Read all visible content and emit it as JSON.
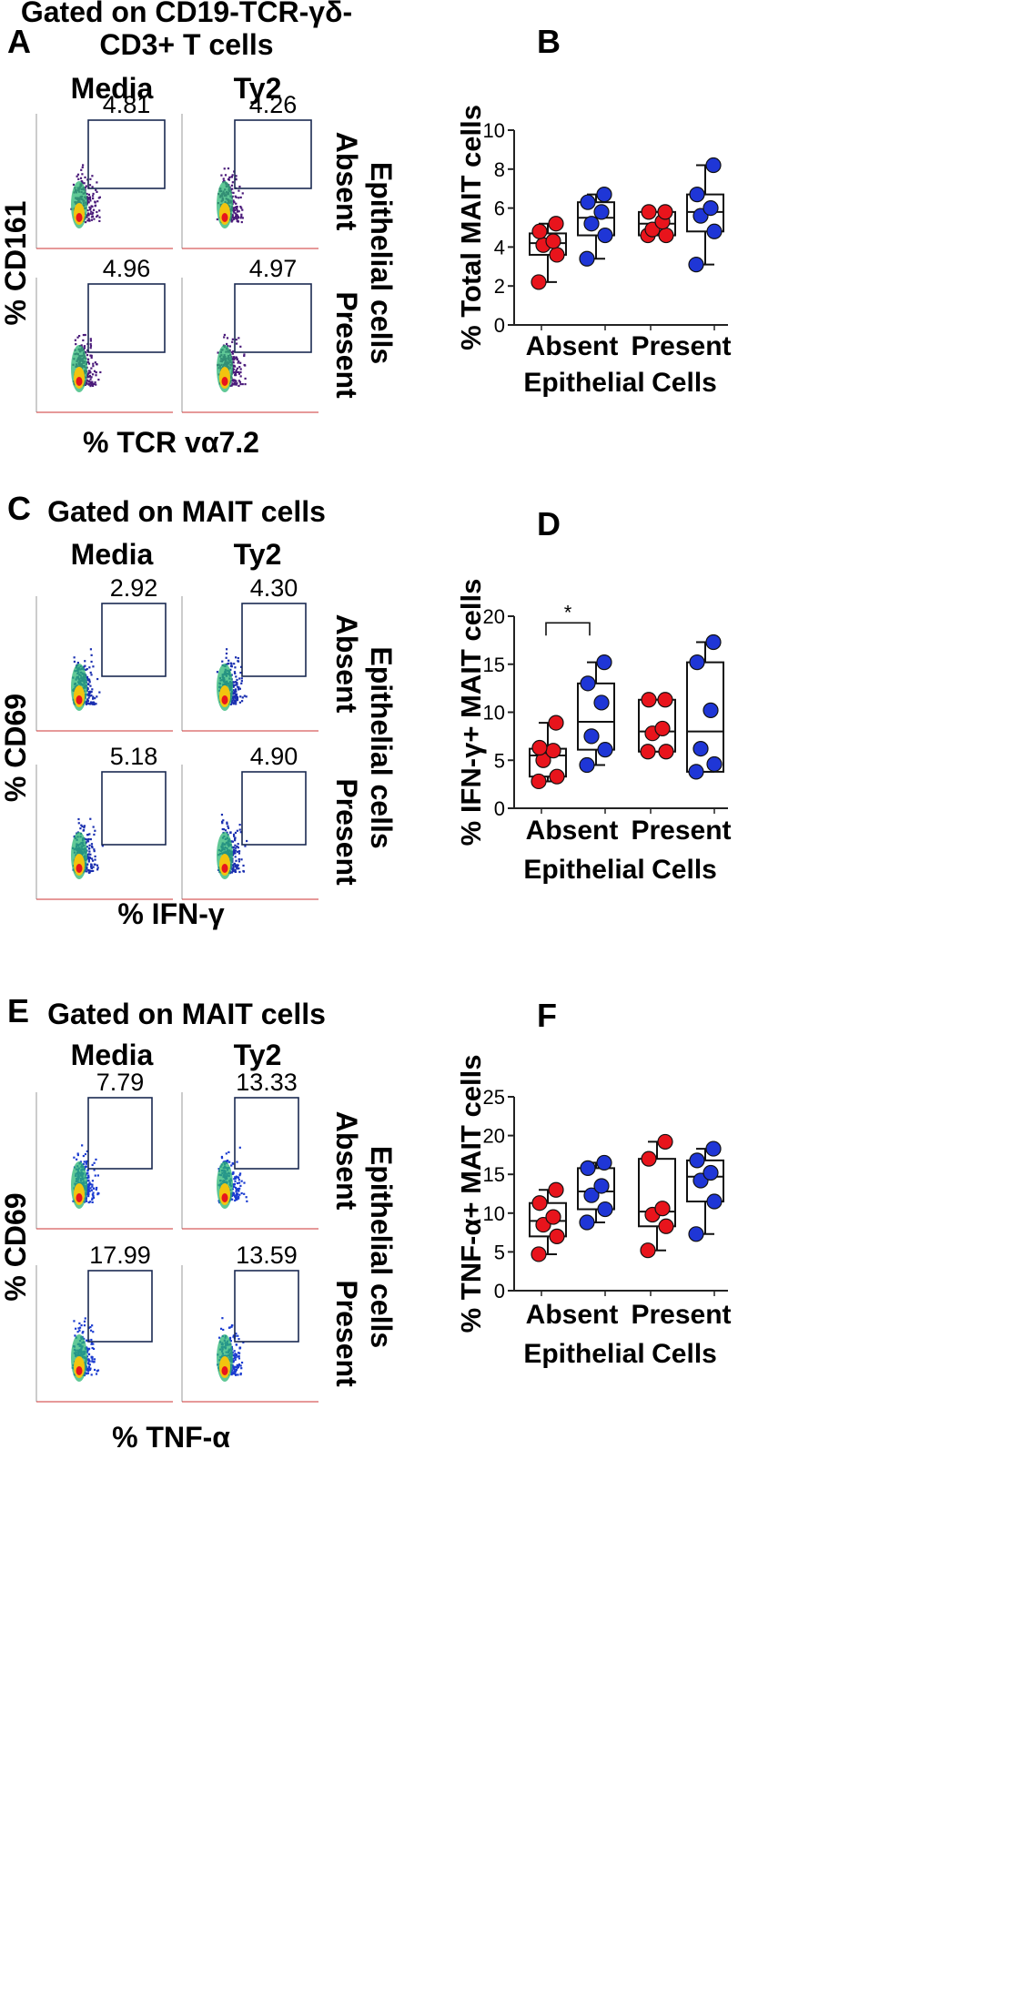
{
  "colors": {
    "absent_media": "#e8141c",
    "ty2": "#1f36d6",
    "gate": "#1a2a52"
  },
  "flow_panels": [
    {
      "panel_label": "A",
      "title_lines": [
        "Gated on CD19-TCR-γδ-",
        "CD3+ T cells"
      ],
      "col_labels": [
        "Media",
        "Ty2"
      ],
      "row_labels": [
        "Absent",
        "Present"
      ],
      "side_label": "Epithelial cells",
      "y_label": "% CD161",
      "x_label": "% TCR vα7.2",
      "dot_color": "#4a1a7a",
      "gates": [
        {
          "row": 0,
          "col": 0,
          "value": "4.81"
        },
        {
          "row": 0,
          "col": 1,
          "value": "4.26"
        },
        {
          "row": 1,
          "col": 0,
          "value": "4.96"
        },
        {
          "row": 1,
          "col": 1,
          "value": "4.97"
        }
      ]
    },
    {
      "panel_label": "C",
      "title_lines": [
        "Gated on MAIT cells"
      ],
      "col_labels": [
        "Media",
        "Ty2"
      ],
      "row_labels": [
        "Absent",
        "Present"
      ],
      "side_label": "Epithelial cells",
      "y_label": "% CD69",
      "x_label": "% IFN-γ",
      "dot_color": "#1a2fb0",
      "gates": [
        {
          "row": 0,
          "col": 0,
          "value": "2.92"
        },
        {
          "row": 0,
          "col": 1,
          "value": "4.30"
        },
        {
          "row": 1,
          "col": 0,
          "value": "5.18"
        },
        {
          "row": 1,
          "col": 1,
          "value": "4.90"
        }
      ]
    },
    {
      "panel_label": "E",
      "title_lines": [
        "Gated on MAIT cells"
      ],
      "col_labels": [
        "Media",
        "Ty2"
      ],
      "row_labels": [
        "Absent",
        "Present"
      ],
      "side_label": "Epithelial cells",
      "y_label": "% CD69",
      "x_label": "% TNF-α",
      "dot_color": "#1a3bd0",
      "gates": [
        {
          "row": 0,
          "col": 0,
          "value": "7.79"
        },
        {
          "row": 0,
          "col": 1,
          "value": "13.33"
        },
        {
          "row": 1,
          "col": 0,
          "value": "17.99"
        },
        {
          "row": 1,
          "col": 1,
          "value": "13.59"
        }
      ]
    }
  ],
  "chart_data": [
    {
      "panel_label": "B",
      "type": "box",
      "ylabel": "% Total MAIT cells",
      "ylim": [
        0,
        10
      ],
      "yticks": [
        0,
        2,
        4,
        6,
        8,
        10
      ],
      "categories": [
        "Absent",
        "Present"
      ],
      "xlabel_words": [
        "Epithelial",
        "Cells"
      ],
      "significance": null,
      "series": [
        {
          "name": "Media",
          "color": "#e8141c",
          "boxes": [
            {
              "category": "Absent",
              "min": 2.2,
              "q1": 3.6,
              "median": 4.2,
              "q3": 4.7,
              "max": 5.2,
              "points": [
                2.2,
                3.6,
                4.1,
                4.3,
                4.8,
                5.2
              ]
            },
            {
              "category": "Present",
              "min": 4.6,
              "q1": 4.6,
              "median": 5.2,
              "q3": 5.8,
              "max": 5.8,
              "points": [
                4.6,
                4.6,
                4.9,
                5.3,
                5.8,
                5.8
              ]
            }
          ]
        },
        {
          "name": "Ty2",
          "color": "#1f36d6",
          "boxes": [
            {
              "category": "Absent",
              "min": 3.4,
              "q1": 4.6,
              "median": 5.5,
              "q3": 6.3,
              "max": 6.7,
              "points": [
                3.4,
                4.6,
                5.2,
                5.8,
                6.3,
                6.7
              ]
            },
            {
              "category": "Present",
              "min": 3.1,
              "q1": 4.8,
              "median": 5.8,
              "q3": 6.7,
              "max": 8.2,
              "points": [
                3.1,
                4.8,
                5.6,
                6.0,
                6.7,
                8.2
              ]
            }
          ]
        }
      ]
    },
    {
      "panel_label": "D",
      "type": "box",
      "ylabel": "% IFN-γ+ MAIT cells",
      "ylim": [
        0,
        20
      ],
      "yticks": [
        0,
        5,
        10,
        15,
        20
      ],
      "categories": [
        "Absent",
        "Present"
      ],
      "xlabel_words": [
        "Epithelial",
        "Cells"
      ],
      "significance": {
        "label": "*",
        "between": [
          "Media-Absent",
          "Ty2-Absent"
        ]
      },
      "series": [
        {
          "name": "Media",
          "color": "#e8141c",
          "boxes": [
            {
              "category": "Absent",
              "min": 2.8,
              "q1": 3.3,
              "median": 5.5,
              "q3": 6.2,
              "max": 8.9,
              "points": [
                2.8,
                3.3,
                5.0,
                6.0,
                6.3,
                8.9
              ]
            },
            {
              "category": "Present",
              "min": 5.9,
              "q1": 5.9,
              "median": 8.0,
              "q3": 11.3,
              "max": 11.3,
              "points": [
                5.9,
                5.9,
                7.8,
                8.3,
                11.3,
                11.3
              ]
            }
          ]
        },
        {
          "name": "Ty2",
          "color": "#1f36d6",
          "boxes": [
            {
              "category": "Absent",
              "min": 4.5,
              "q1": 6.1,
              "median": 9.0,
              "q3": 13.0,
              "max": 15.2,
              "points": [
                4.5,
                6.1,
                7.5,
                11.0,
                13.0,
                15.2
              ]
            },
            {
              "category": "Present",
              "min": 3.8,
              "q1": 3.8,
              "median": 8.0,
              "q3": 15.2,
              "max": 17.3,
              "points": [
                3.8,
                4.6,
                6.2,
                10.2,
                15.2,
                17.3
              ]
            }
          ]
        }
      ]
    },
    {
      "panel_label": "F",
      "type": "box",
      "ylabel": "% TNF-α+ MAIT cells",
      "ylim": [
        0,
        25
      ],
      "yticks": [
        0,
        5,
        10,
        15,
        20,
        25
      ],
      "categories": [
        "Absent",
        "Present"
      ],
      "xlabel_words": [
        "Epithelial",
        "Cells"
      ],
      "significance": null,
      "series": [
        {
          "name": "Media",
          "color": "#e8141c",
          "boxes": [
            {
              "category": "Absent",
              "min": 4.7,
              "q1": 7.0,
              "median": 9.0,
              "q3": 11.3,
              "max": 13.0,
              "points": [
                4.7,
                7.0,
                8.5,
                9.5,
                11.3,
                13.0
              ]
            },
            {
              "category": "Present",
              "min": 5.2,
              "q1": 8.3,
              "median": 10.2,
              "q3": 17.0,
              "max": 19.2,
              "points": [
                5.2,
                8.3,
                9.8,
                10.6,
                17.0,
                19.2
              ]
            }
          ]
        },
        {
          "name": "Ty2",
          "color": "#1f36d6",
          "boxes": [
            {
              "category": "Absent",
              "min": 8.8,
              "q1": 10.5,
              "median": 12.8,
              "q3": 15.8,
              "max": 16.5,
              "points": [
                8.8,
                10.5,
                12.3,
                13.5,
                15.8,
                16.5
              ]
            },
            {
              "category": "Present",
              "min": 7.3,
              "q1": 11.5,
              "median": 14.7,
              "q3": 16.8,
              "max": 18.3,
              "points": [
                7.3,
                11.5,
                14.2,
                15.2,
                16.8,
                18.3
              ]
            }
          ]
        }
      ]
    }
  ]
}
